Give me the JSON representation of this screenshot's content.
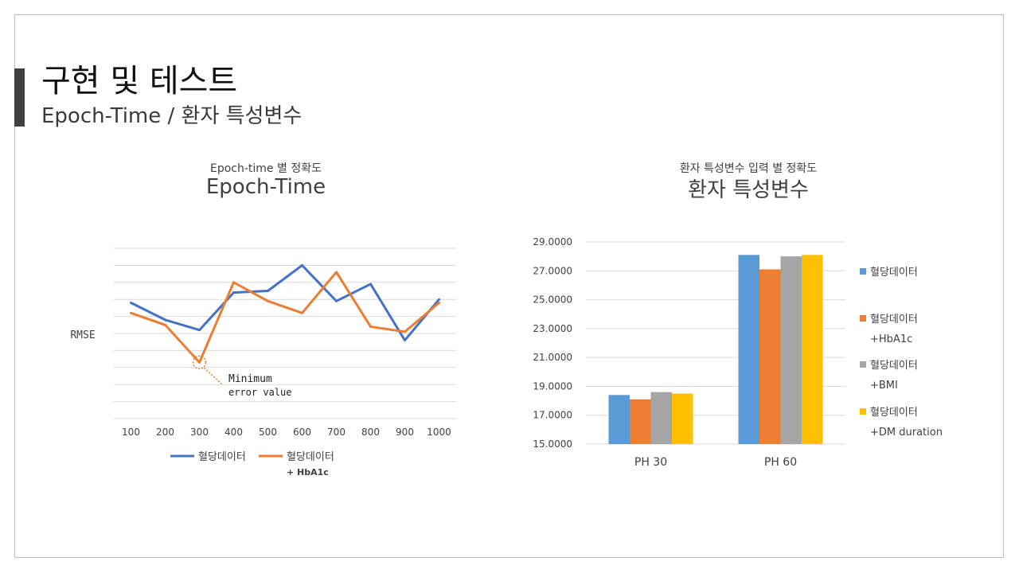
{
  "slide": {
    "title": "구현 및 테스트",
    "subtitle": "Epoch-Time / 환자 특성변수"
  },
  "colors": {
    "accent_bar": "#404040",
    "blue": "#4472C4",
    "orange": "#ED7D31",
    "bar_blue": "#5B9BD5",
    "bar_orange": "#ED7D31",
    "bar_gray": "#A5A5A5",
    "bar_yellow": "#FFC000"
  },
  "left_chart": {
    "caption_small": "Epoch-time 별 정확도",
    "caption_big": "Epoch-Time",
    "annotation": {
      "line1": "Minimum",
      "line2": "error value"
    }
  },
  "right_chart": {
    "caption_small": "환자 특성변수 입력 별 정확도",
    "caption_big": "환자 특성변수"
  },
  "chart_data": [
    {
      "type": "line",
      "title": "Epoch-Time",
      "ylabel": "RMSE",
      "xlabel": "",
      "x": [
        "100",
        "200",
        "300",
        "400",
        "500",
        "600",
        "700",
        "800",
        "900",
        "1000"
      ],
      "ylim": [
        0,
        10
      ],
      "grid": true,
      "legend": "bottom",
      "series": [
        {
          "name": "혈당데이터",
          "color": "#4472C4",
          "values": [
            6.8,
            5.8,
            5.2,
            7.4,
            7.5,
            9.0,
            6.9,
            7.9,
            4.6,
            7.0
          ]
        },
        {
          "name": "혈당데이터\n+ HbA1c",
          "name_lines": [
            "혈당데이터",
            "+ HbA1c"
          ],
          "color": "#ED7D31",
          "values": [
            6.2,
            5.5,
            3.3,
            8.0,
            6.9,
            6.2,
            8.6,
            5.4,
            5.1,
            6.8
          ]
        }
      ]
    },
    {
      "type": "bar",
      "title": "환자 특성변수",
      "categories": [
        "PH 30",
        "PH 60"
      ],
      "ylim": [
        15,
        29
      ],
      "yticks": [
        "15.0000",
        "17.0000",
        "19.0000",
        "21.0000",
        "23.0000",
        "25.0000",
        "27.0000",
        "29.0000"
      ],
      "grid": true,
      "legend": "right",
      "series": [
        {
          "name": "혈당데이터",
          "name_lines": [
            "혈당데이터"
          ],
          "color": "#5B9BD5",
          "values": [
            18.4,
            28.1
          ]
        },
        {
          "name": "혈당데이터 +HbA1c",
          "name_lines": [
            "혈당데이터",
            "+HbA1c"
          ],
          "color": "#ED7D31",
          "values": [
            18.1,
            27.1
          ]
        },
        {
          "name": "혈당데이터 +BMI",
          "name_lines": [
            "혈당데이터",
            "+BMI"
          ],
          "color": "#A5A5A5",
          "values": [
            18.6,
            28.0
          ]
        },
        {
          "name": "혈당데이터 +DM duration",
          "name_lines": [
            "혈당데이터",
            "+DM duration"
          ],
          "color": "#FFC000",
          "values": [
            18.5,
            28.1
          ]
        }
      ]
    }
  ]
}
